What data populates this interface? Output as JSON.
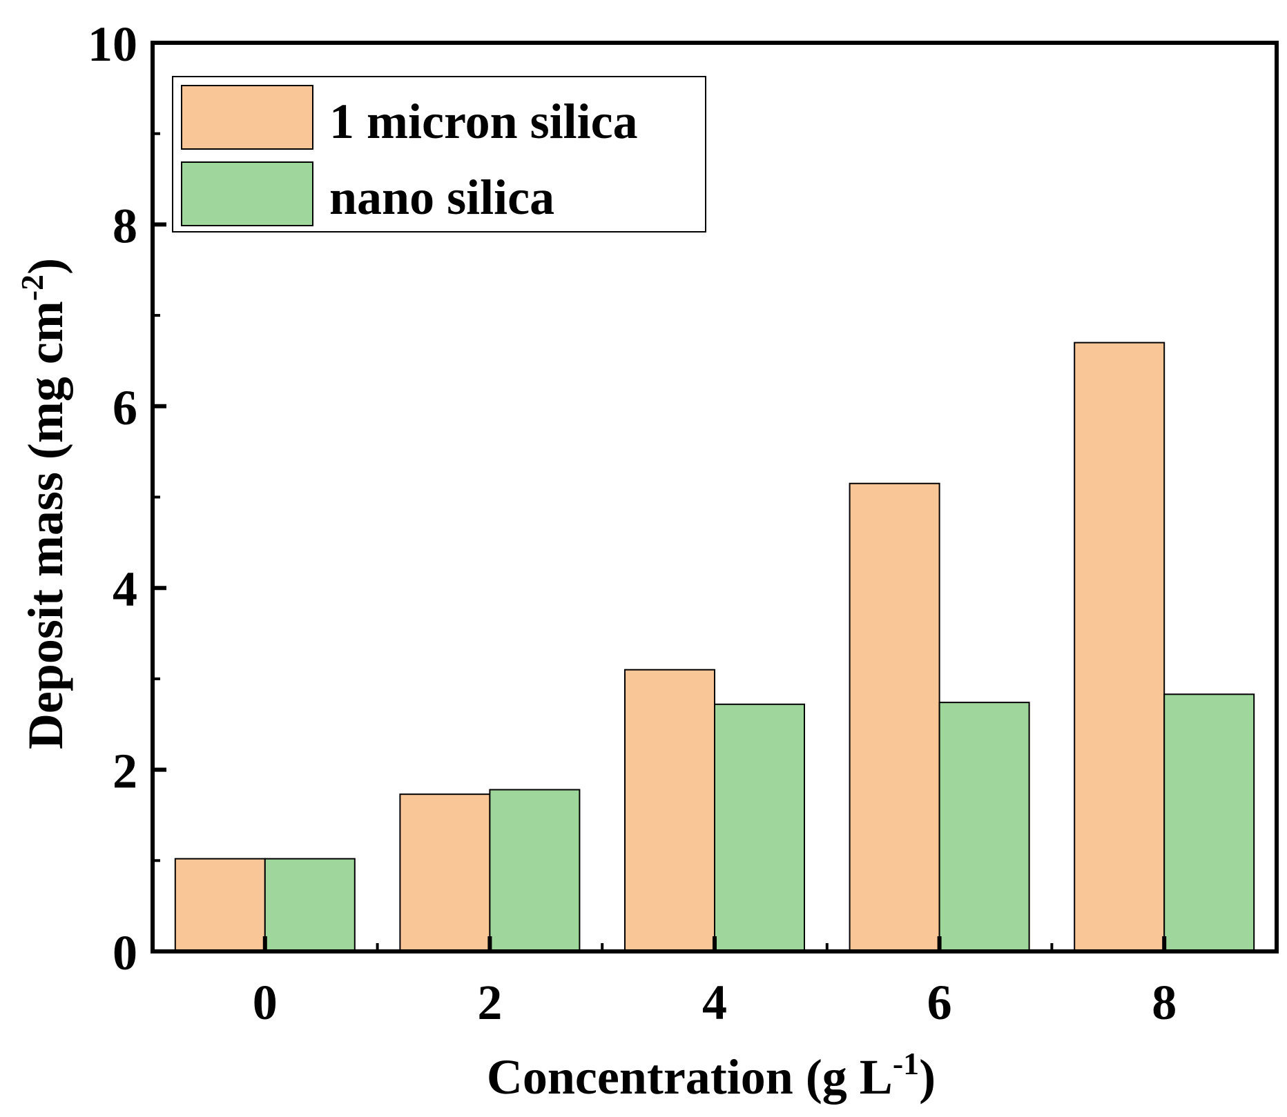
{
  "chart_data": {
    "type": "bar",
    "title": "",
    "xlabel": "Concentration (g L",
    "xlabel_sup": "-1",
    "xlabel_close": ")",
    "ylabel": "Deposit mass (mg cm",
    "ylabel_sup": "-2",
    "ylabel_close": ")",
    "categories": [
      "0",
      "2",
      "4",
      "6",
      "8"
    ],
    "ylim": [
      0,
      10
    ],
    "yticks": [
      "0",
      "2",
      "4",
      "6",
      "8",
      "10"
    ],
    "legend_position": "top-left",
    "series": [
      {
        "name": "1 micron silica",
        "color": "#f9c697",
        "values": [
          1.02,
          1.73,
          3.1,
          5.15,
          6.7
        ]
      },
      {
        "name": "nano silica",
        "color": "#9ed69c",
        "values": [
          1.02,
          1.78,
          2.72,
          2.74,
          2.83
        ]
      }
    ]
  }
}
